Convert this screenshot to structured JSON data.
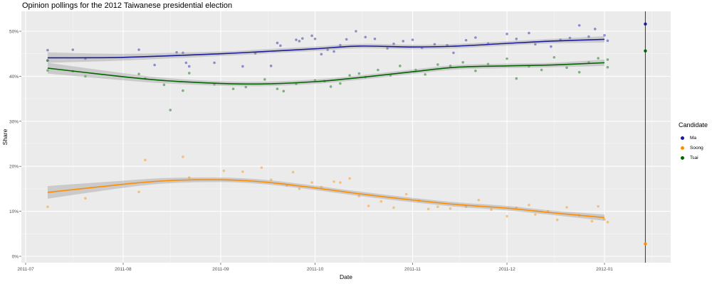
{
  "chart_data": {
    "type": "scatter",
    "title": "Opinion pollings for the 2012 Taiwanese presidential election",
    "xlabel": "Date",
    "ylabel": "Share",
    "xlim": [
      "2011-06-30",
      "2012-01-24"
    ],
    "ylim": [
      -1.5,
      54
    ],
    "x_ticks": [
      "2011-07",
      "2011-08",
      "2011-09",
      "2011-10",
      "2011-11",
      "2011-12",
      "2012-01"
    ],
    "y_ticks": [
      "0%",
      "10%",
      "20%",
      "30%",
      "40%",
      "50%"
    ],
    "grid": true,
    "legend": {
      "title": "Candidate",
      "placement": "right"
    },
    "election_line": {
      "date": "2012-01-14",
      "color": "#444444"
    },
    "series": [
      {
        "name": "Ma",
        "color": "#1b1b9e",
        "points": [
          [
            "2011-07-08",
            45.8
          ],
          [
            "2011-07-08",
            43.5
          ],
          [
            "2011-07-16",
            45.9
          ],
          [
            "2011-07-20",
            43.9
          ],
          [
            "2011-08-06",
            45.9
          ],
          [
            "2011-08-11",
            42.5
          ],
          [
            "2011-08-18",
            45.3
          ],
          [
            "2011-08-20",
            45.2
          ],
          [
            "2011-08-21",
            43
          ],
          [
            "2011-08-22",
            42.2
          ],
          [
            "2011-08-30",
            43
          ],
          [
            "2011-09-08",
            42.2
          ],
          [
            "2011-09-12",
            45.1
          ],
          [
            "2011-09-17",
            42.3
          ],
          [
            "2011-09-19",
            47.4
          ],
          [
            "2011-09-20",
            46.8
          ],
          [
            "2011-09-25",
            48.1
          ],
          [
            "2011-09-26",
            47.8
          ],
          [
            "2011-09-27",
            48.4
          ],
          [
            "2011-09-30",
            49
          ],
          [
            "2011-10-01",
            48.3
          ],
          [
            "2011-10-03",
            44.9
          ],
          [
            "2011-10-05",
            45.9
          ],
          [
            "2011-10-07",
            45.5
          ],
          [
            "2011-10-09",
            46.9
          ],
          [
            "2011-10-11",
            48.2
          ],
          [
            "2011-10-14",
            50
          ],
          [
            "2011-10-17",
            48.7
          ],
          [
            "2011-10-20",
            48.3
          ],
          [
            "2011-10-24",
            46.2
          ],
          [
            "2011-10-26",
            47.2
          ],
          [
            "2011-10-29",
            47.8
          ],
          [
            "2011-11-01",
            48.1
          ],
          [
            "2011-11-04",
            46.3
          ],
          [
            "2011-11-08",
            47.1
          ],
          [
            "2011-11-12",
            46.9
          ],
          [
            "2011-11-14",
            45.2
          ],
          [
            "2011-11-18",
            48
          ],
          [
            "2011-11-21",
            48.6
          ],
          [
            "2011-11-25",
            47.3
          ],
          [
            "2011-12-01",
            49.4
          ],
          [
            "2011-12-04",
            48.3
          ],
          [
            "2011-12-08",
            49.6
          ],
          [
            "2011-12-10",
            47.1
          ],
          [
            "2011-12-15",
            46.6
          ],
          [
            "2011-12-18",
            48.1
          ],
          [
            "2011-12-21",
            48.5
          ],
          [
            "2011-12-24",
            51.3
          ],
          [
            "2011-12-27",
            48.8
          ],
          [
            "2011-12-29",
            50.5
          ],
          [
            "2012-01-01",
            49.1
          ],
          [
            "2012-01-02",
            47.9
          ]
        ],
        "smooth": [
          [
            "2011-07-08",
            44.1,
            43.0,
            45.3
          ],
          [
            "2011-08-01",
            44.2,
            43.5,
            45.0
          ],
          [
            "2011-09-01",
            45.0,
            44.5,
            45.5
          ],
          [
            "2011-09-15",
            45.5,
            45.0,
            46.0
          ],
          [
            "2011-10-01",
            46.1,
            45.6,
            46.6
          ],
          [
            "2011-10-15",
            46.7,
            46.2,
            47.2
          ],
          [
            "2011-11-01",
            46.5,
            46.0,
            47.0
          ],
          [
            "2011-11-15",
            46.7,
            46.2,
            47.2
          ],
          [
            "2011-12-01",
            47.3,
            46.8,
            47.8
          ],
          [
            "2011-12-15",
            47.8,
            47.3,
            48.3
          ],
          [
            "2012-01-01",
            48.2,
            47.5,
            48.9
          ]
        ],
        "election_result": 51.6
      },
      {
        "name": "Soong",
        "color": "#ff8c00",
        "points": [
          [
            "2011-07-08",
            11
          ],
          [
            "2011-07-20",
            12.9
          ],
          [
            "2011-08-06",
            14.3
          ],
          [
            "2011-08-08",
            21.4
          ],
          [
            "2011-08-20",
            22.1
          ],
          [
            "2011-08-22",
            17.5
          ],
          [
            "2011-09-02",
            19
          ],
          [
            "2011-09-08",
            18.8
          ],
          [
            "2011-09-14",
            19.7
          ],
          [
            "2011-09-17",
            17
          ],
          [
            "2011-09-22",
            15.8
          ],
          [
            "2011-09-24",
            18.7
          ],
          [
            "2011-09-26",
            15
          ],
          [
            "2011-09-30",
            16.4
          ],
          [
            "2011-10-03",
            15.4
          ],
          [
            "2011-10-07",
            16.6
          ],
          [
            "2011-10-09",
            16.4
          ],
          [
            "2011-10-12",
            17.3
          ],
          [
            "2011-10-15",
            13.4
          ],
          [
            "2011-10-18",
            11.2
          ],
          [
            "2011-10-22",
            12.2
          ],
          [
            "2011-10-26",
            10.8
          ],
          [
            "2011-10-30",
            13.8
          ],
          [
            "2011-11-03",
            12.4
          ],
          [
            "2011-11-06",
            10.5
          ],
          [
            "2011-11-09",
            11
          ],
          [
            "2011-11-13",
            10.6
          ],
          [
            "2011-11-18",
            11
          ],
          [
            "2011-11-22",
            12.5
          ],
          [
            "2011-11-26",
            10.4
          ],
          [
            "2011-12-01",
            8.9
          ],
          [
            "2011-12-04",
            10.8
          ],
          [
            "2011-12-08",
            11.4
          ],
          [
            "2011-12-10",
            9.3
          ],
          [
            "2011-12-14",
            10
          ],
          [
            "2011-12-17",
            8.1
          ],
          [
            "2011-12-20",
            10.9
          ],
          [
            "2011-12-24",
            9.1
          ],
          [
            "2011-12-28",
            7.8
          ],
          [
            "2011-12-30",
            11.1
          ],
          [
            "2012-01-01",
            8.2
          ],
          [
            "2012-01-02",
            7.6
          ]
        ],
        "smooth": [
          [
            "2011-07-08",
            14.2,
            12.8,
            15.6
          ],
          [
            "2011-08-01",
            16.0,
            15.2,
            16.8
          ],
          [
            "2011-08-15",
            16.8,
            16.2,
            17.4
          ],
          [
            "2011-09-01",
            17.0,
            16.5,
            17.5
          ],
          [
            "2011-09-15",
            16.5,
            16.0,
            17.0
          ],
          [
            "2011-10-01",
            15.2,
            14.7,
            15.7
          ],
          [
            "2011-10-15",
            13.9,
            13.4,
            14.4
          ],
          [
            "2011-11-01",
            12.5,
            12.0,
            13.0
          ],
          [
            "2011-11-15",
            11.5,
            11.0,
            12.0
          ],
          [
            "2011-12-01",
            10.7,
            10.2,
            11.2
          ],
          [
            "2011-12-15",
            9.7,
            9.2,
            10.2
          ],
          [
            "2012-01-01",
            8.6,
            7.9,
            9.3
          ]
        ],
        "election_result": 2.77
      },
      {
        "name": "Tsai",
        "color": "#006400",
        "points": [
          [
            "2011-07-08",
            43.5
          ],
          [
            "2011-07-08",
            41.3
          ],
          [
            "2011-07-16",
            41.1
          ],
          [
            "2011-07-20",
            40
          ],
          [
            "2011-08-06",
            40.5
          ],
          [
            "2011-08-08",
            39.5
          ],
          [
            "2011-08-14",
            38.1
          ],
          [
            "2011-08-16",
            32.5
          ],
          [
            "2011-08-20",
            36.8
          ],
          [
            "2011-08-22",
            40.7
          ],
          [
            "2011-08-30",
            38.2
          ],
          [
            "2011-09-05",
            37.2
          ],
          [
            "2011-09-09",
            37.6
          ],
          [
            "2011-09-15",
            39.3
          ],
          [
            "2011-09-19",
            37.2
          ],
          [
            "2011-09-21",
            36.7
          ],
          [
            "2011-09-25",
            38.3
          ],
          [
            "2011-10-01",
            39.1
          ],
          [
            "2011-10-04",
            38.9
          ],
          [
            "2011-10-06",
            37.7
          ],
          [
            "2011-10-09",
            38.4
          ],
          [
            "2011-10-12",
            40.2
          ],
          [
            "2011-10-15",
            40.6
          ],
          [
            "2011-10-17",
            39.8
          ],
          [
            "2011-10-21",
            41.4
          ],
          [
            "2011-10-25",
            40.2
          ],
          [
            "2011-10-28",
            42.3
          ],
          [
            "2011-11-02",
            41.4
          ],
          [
            "2011-11-05",
            40.4
          ],
          [
            "2011-11-09",
            42.6
          ],
          [
            "2011-11-13",
            42.3
          ],
          [
            "2011-11-17",
            43.1
          ],
          [
            "2011-11-21",
            41.2
          ],
          [
            "2011-11-25",
            42.7
          ],
          [
            "2011-12-01",
            43.9
          ],
          [
            "2011-12-04",
            39.5
          ],
          [
            "2011-12-08",
            42.2
          ],
          [
            "2011-12-12",
            41.4
          ],
          [
            "2011-12-16",
            44.2
          ],
          [
            "2011-12-20",
            41.9
          ],
          [
            "2011-12-24",
            40.9
          ],
          [
            "2011-12-27",
            43.1
          ],
          [
            "2011-12-30",
            44
          ],
          [
            "2012-01-02",
            43.7
          ],
          [
            "2012-01-02",
            42
          ]
        ],
        "smooth": [
          [
            "2011-07-08",
            41.8,
            40.6,
            43.0
          ],
          [
            "2011-08-01",
            39.9,
            39.1,
            40.7
          ],
          [
            "2011-08-15",
            39.0,
            38.4,
            39.6
          ],
          [
            "2011-09-01",
            38.4,
            37.9,
            38.9
          ],
          [
            "2011-09-15",
            38.3,
            37.8,
            38.8
          ],
          [
            "2011-10-01",
            38.8,
            38.3,
            39.3
          ],
          [
            "2011-10-15",
            39.7,
            39.2,
            40.2
          ],
          [
            "2011-11-01",
            41.0,
            40.5,
            41.5
          ],
          [
            "2011-11-15",
            42.0,
            41.5,
            42.5
          ],
          [
            "2011-12-01",
            42.3,
            41.8,
            42.8
          ],
          [
            "2011-12-15",
            42.5,
            42.0,
            43.0
          ],
          [
            "2012-01-01",
            43.0,
            42.3,
            43.7
          ]
        ],
        "election_result": 45.63
      }
    ]
  }
}
